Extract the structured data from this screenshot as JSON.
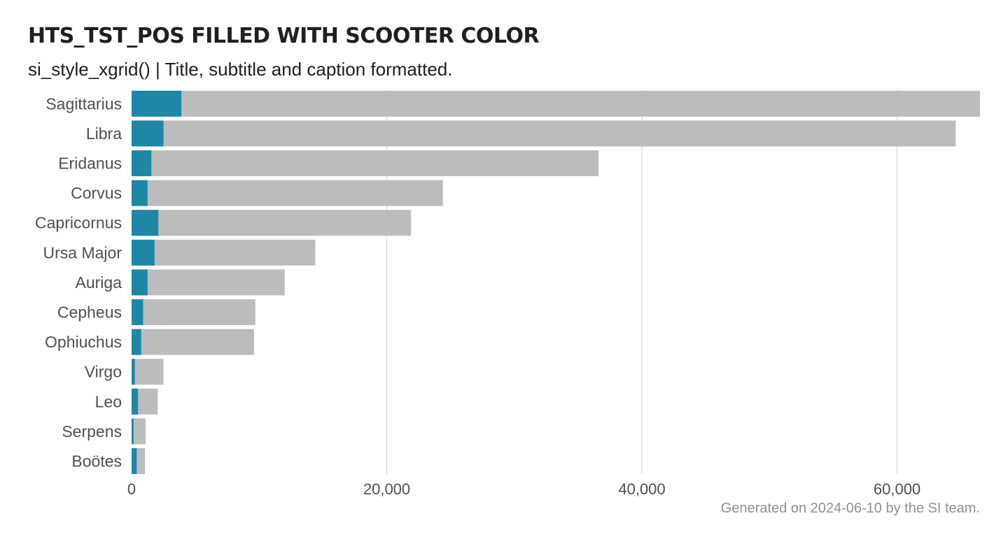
{
  "title": "HTS_TST_POS FILLED WITH SCOOTER COLOR",
  "subtitle": "si_style_xgrid() | Title, subtitle and caption formatted.",
  "caption": "Generated on  2024-06-10  by the SI team.",
  "colors": {
    "positive": "#1e87a5",
    "total": "#bbbcbe",
    "grid": "#d9d9d9",
    "text": "#505050"
  },
  "chart_data": {
    "type": "bar",
    "orientation": "horizontal",
    "stacked": false,
    "overlap": true,
    "categories": [
      "Sagittarius",
      "Libra",
      "Eridanus",
      "Corvus",
      "Capricornus",
      "Ursa Major",
      "Auriga",
      "Cepheus",
      "Ophiuchus",
      "Virgo",
      "Leo",
      "Serpens",
      "Boötes"
    ],
    "series": [
      {
        "values": [
          66500,
          64600,
          36600,
          24400,
          21900,
          14400,
          12000,
          9700,
          9600,
          2500,
          2050,
          1100,
          1050
        ],
        "color": "#bbbcbe"
      },
      {
        "values": [
          3900,
          2500,
          1550,
          1250,
          2100,
          1800,
          1250,
          900,
          750,
          250,
          500,
          150,
          400
        ],
        "color": "#1e87a5"
      }
    ],
    "xlim": [
      0,
      66500
    ],
    "xticks": [
      0,
      20000,
      40000,
      60000
    ],
    "xtick_labels": [
      "0",
      "20,000",
      "40,000",
      "60,000"
    ],
    "grid": "x-major",
    "legend": "none"
  }
}
